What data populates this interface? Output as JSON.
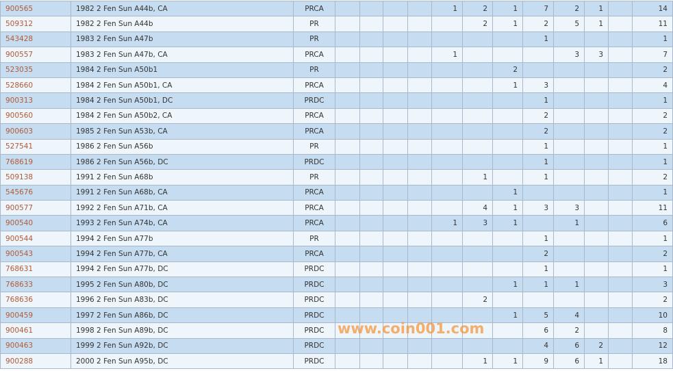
{
  "rows": [
    {
      "id": "900565",
      "desc": "1982 2 Fen Sun A44b, CA",
      "type": "PRCA",
      "counts": [
        "",
        "",
        "",
        "",
        "1",
        "2",
        "1",
        "7",
        "2",
        "1",
        ""
      ],
      "total": "14"
    },
    {
      "id": "509312",
      "desc": "1982 2 Fen Sun A44b",
      "type": "PR",
      "counts": [
        "",
        "",
        "",
        "",
        "",
        "2",
        "1",
        "2",
        "5",
        "1",
        ""
      ],
      "total": "11"
    },
    {
      "id": "543428",
      "desc": "1983 2 Fen Sun A47b",
      "type": "PR",
      "counts": [
        "",
        "",
        "",
        "",
        "",
        "",
        "",
        "1",
        "",
        "",
        ""
      ],
      "total": "1"
    },
    {
      "id": "900557",
      "desc": "1983 2 Fen Sun A47b, CA",
      "type": "PRCA",
      "counts": [
        "",
        "",
        "",
        "",
        "1",
        "",
        "",
        "",
        "3",
        "3",
        ""
      ],
      "total": "7"
    },
    {
      "id": "523035",
      "desc": "1984 2 Fen Sun A50b1",
      "type": "PR",
      "counts": [
        "",
        "",
        "",
        "",
        "",
        "",
        "2",
        "",
        "",
        "",
        ""
      ],
      "total": "2"
    },
    {
      "id": "528660",
      "desc": "1984 2 Fen Sun A50b1, CA",
      "type": "PRCA",
      "counts": [
        "",
        "",
        "",
        "",
        "",
        "",
        "1",
        "3",
        "",
        "",
        ""
      ],
      "total": "4"
    },
    {
      "id": "900313",
      "desc": "1984 2 Fen Sun A50b1, DC",
      "type": "PRDC",
      "counts": [
        "",
        "",
        "",
        "",
        "",
        "",
        "",
        "1",
        "",
        "",
        ""
      ],
      "total": "1"
    },
    {
      "id": "900560",
      "desc": "1984 2 Fen Sun A50b2, CA",
      "type": "PRCA",
      "counts": [
        "",
        "",
        "",
        "",
        "",
        "",
        "",
        "2",
        "",
        "",
        ""
      ],
      "total": "2"
    },
    {
      "id": "900603",
      "desc": "1985 2 Fen Sun A53b, CA",
      "type": "PRCA",
      "counts": [
        "",
        "",
        "",
        "",
        "",
        "",
        "",
        "2",
        "",
        "",
        ""
      ],
      "total": "2"
    },
    {
      "id": "527541",
      "desc": "1986 2 Fen Sun A56b",
      "type": "PR",
      "counts": [
        "",
        "",
        "",
        "",
        "",
        "",
        "",
        "1",
        "",
        "",
        ""
      ],
      "total": "1"
    },
    {
      "id": "768619",
      "desc": "1986 2 Fen Sun A56b, DC",
      "type": "PRDC",
      "counts": [
        "",
        "",
        "",
        "",
        "",
        "",
        "",
        "1",
        "",
        "",
        ""
      ],
      "total": "1"
    },
    {
      "id": "509138",
      "desc": "1991 2 Fen Sun A68b",
      "type": "PR",
      "counts": [
        "",
        "",
        "",
        "",
        "",
        "1",
        "",
        "1",
        "",
        "",
        ""
      ],
      "total": "2"
    },
    {
      "id": "545676",
      "desc": "1991 2 Fen Sun A68b, CA",
      "type": "PRCA",
      "counts": [
        "",
        "",
        "",
        "",
        "",
        "",
        "1",
        "",
        "",
        "",
        ""
      ],
      "total": "1"
    },
    {
      "id": "900577",
      "desc": "1992 2 Fen Sun A71b, CA",
      "type": "PRCA",
      "counts": [
        "",
        "",
        "",
        "",
        "",
        "4",
        "1",
        "3",
        "3",
        "",
        ""
      ],
      "total": "11"
    },
    {
      "id": "900540",
      "desc": "1993 2 Fen Sun A74b, CA",
      "type": "PRCA",
      "counts": [
        "",
        "",
        "",
        "",
        "1",
        "3",
        "1",
        "",
        "1",
        "",
        ""
      ],
      "total": "6"
    },
    {
      "id": "900544",
      "desc": "1994 2 Fen Sun A77b",
      "type": "PR",
      "counts": [
        "",
        "",
        "",
        "",
        "",
        "",
        "",
        "1",
        "",
        "",
        ""
      ],
      "total": "1"
    },
    {
      "id": "900543",
      "desc": "1994 2 Fen Sun A77b, CA",
      "type": "PRCA",
      "counts": [
        "",
        "",
        "",
        "",
        "",
        "",
        "",
        "2",
        "",
        "",
        ""
      ],
      "total": "2"
    },
    {
      "id": "768631",
      "desc": "1994 2 Fen Sun A77b, DC",
      "type": "PRDC",
      "counts": [
        "",
        "",
        "",
        "",
        "",
        "",
        "",
        "1",
        "",
        "",
        ""
      ],
      "total": "1"
    },
    {
      "id": "768633",
      "desc": "1995 2 Fen Sun A80b, DC",
      "type": "PRDC",
      "counts": [
        "",
        "",
        "",
        "",
        "",
        "",
        "1",
        "1",
        "1",
        "",
        ""
      ],
      "total": "3"
    },
    {
      "id": "768636",
      "desc": "1996 2 Fen Sun A83b, DC",
      "type": "PRDC",
      "counts": [
        "",
        "",
        "",
        "",
        "",
        "2",
        "",
        "",
        "",
        "",
        ""
      ],
      "total": "2"
    },
    {
      "id": "900459",
      "desc": "1997 2 Fen Sun A86b, DC",
      "type": "PRDC",
      "counts": [
        "",
        "",
        "",
        "",
        "",
        "",
        "1",
        "5",
        "4",
        "",
        ""
      ],
      "total": "10"
    },
    {
      "id": "900461",
      "desc": "1998 2 Fen Sun A89b, DC",
      "type": "PRDC",
      "counts": [
        "",
        "",
        "",
        "",
        "",
        "",
        "",
        "6",
        "2",
        "",
        ""
      ],
      "total": "8"
    },
    {
      "id": "900463",
      "desc": "1999 2 Fen Sun A92b, DC",
      "type": "PRDC",
      "counts": [
        "",
        "",
        "",
        "",
        "",
        "",
        "",
        "4",
        "6",
        "2",
        ""
      ],
      "total": "12"
    },
    {
      "id": "900288",
      "desc": "2000 2 Fen Sun A95b, DC",
      "type": "PRDC",
      "counts": [
        "",
        "",
        "",
        "",
        "",
        "1",
        "1",
        "9",
        "6",
        "1",
        ""
      ],
      "total": "18"
    }
  ],
  "watermark": "www.coin001.com",
  "colors": {
    "row_odd": "#c6ddf1",
    "row_even": "#eef5fb",
    "link": "#b05a36",
    "watermark": "#f5963c"
  }
}
